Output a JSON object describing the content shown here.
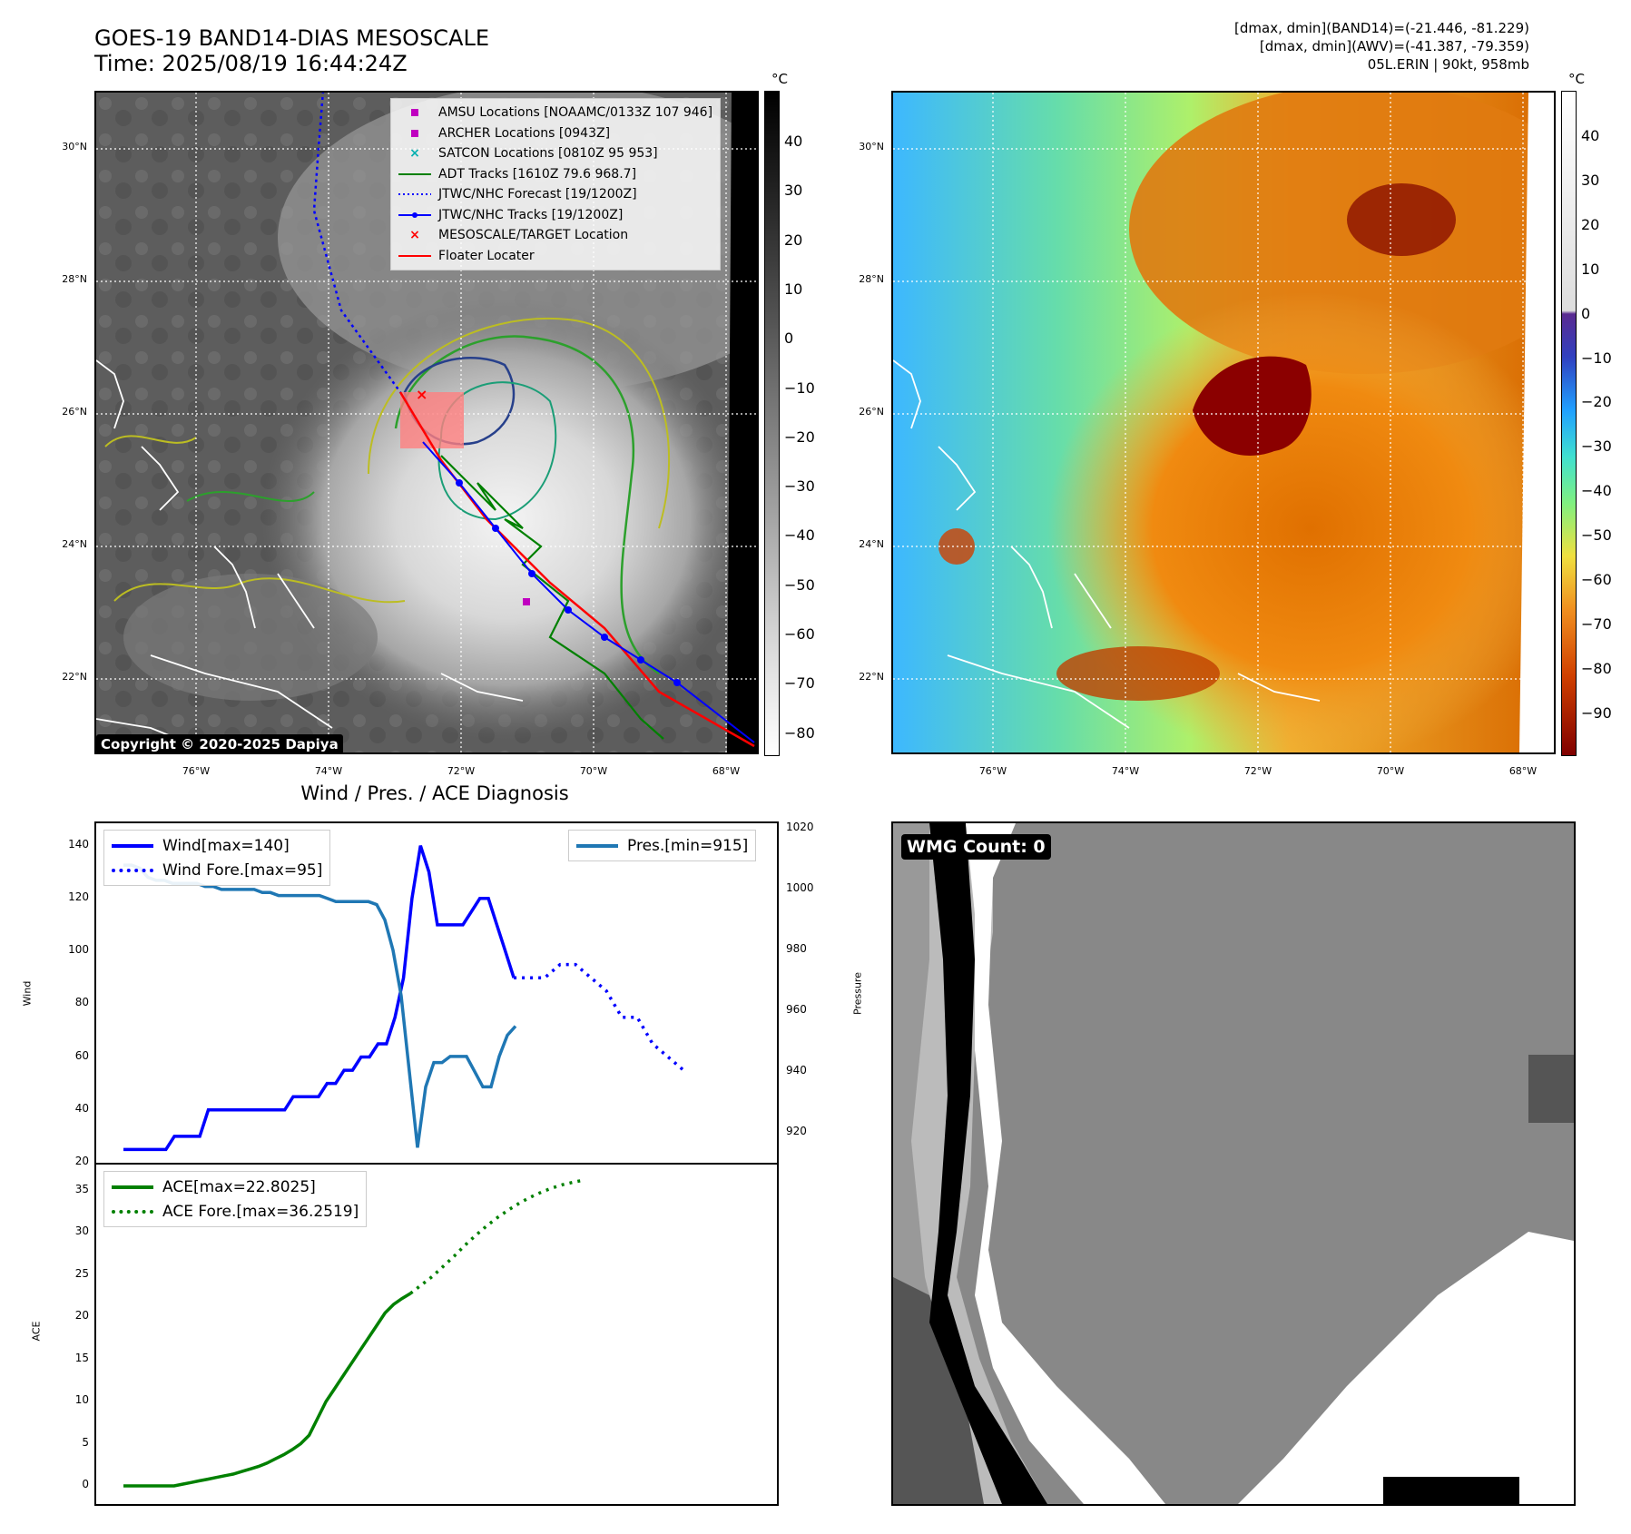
{
  "header": {
    "title_line1": "GOES-19 BAND14-DIAS MESOSCALE",
    "title_line2": "Time: 2025/08/19 16:44:24Z",
    "right_line1": "[dmax, dmin](BAND14)=(-21.446, -81.229)",
    "right_line2": "[dmax, dmin](AWV)=(-41.387, -79.359)",
    "right_line3": "05L.ERIN | 90kt, 958mb"
  },
  "map_common": {
    "lat_labels": [
      "30°N",
      "28°N",
      "26°N",
      "24°N",
      "22°N"
    ],
    "lon_labels": [
      "76°W",
      "74°W",
      "72°W",
      "70°W",
      "68°W"
    ],
    "unit": "°C"
  },
  "map_left": {
    "cbar_ticks": [
      "40",
      "30",
      "20",
      "10",
      "0",
      "−10",
      "−20",
      "−30",
      "−40",
      "−50",
      "−60",
      "−70",
      "−80"
    ],
    "copyright": "Copyright © 2020-2025 Dapiya",
    "legend": [
      {
        "label": "AMSU Locations [NOAAMC/0133Z 107 946]",
        "color": "#c000c0",
        "marker": "square"
      },
      {
        "label": "ARCHER Locations [0943Z]",
        "color": "#c000c0",
        "marker": "square"
      },
      {
        "label": "SATCON Locations [0810Z 95 953]",
        "color": "#00b0b0",
        "marker": "x"
      },
      {
        "label": "ADT Tracks [1610Z 79.6 968.7]",
        "color": "#008000",
        "marker": "line"
      },
      {
        "label": "JTWC/NHC Forecast [19/1200Z]",
        "color": "#0000ff",
        "marker": "dotted"
      },
      {
        "label": "JTWC/NHC Tracks [19/1200Z]",
        "color": "#0000ff",
        "marker": "dotline"
      },
      {
        "label": "MESOSCALE/TARGET Location",
        "color": "#ff0000",
        "marker": "x"
      },
      {
        "label": "Floater Locater",
        "color": "#ff0000",
        "marker": "line"
      }
    ]
  },
  "map_right": {
    "cbar_ticks": [
      "40",
      "30",
      "20",
      "10",
      "0",
      "−10",
      "−20",
      "−30",
      "−40",
      "−50",
      "−60",
      "−70",
      "−80",
      "−90"
    ]
  },
  "diag": {
    "title": "Wind / Pres. / ACE Diagnosis",
    "wind_axis_label": "Wind",
    "pres_axis_label": "Pressure",
    "ace_axis_label": "ACE",
    "wind_ticks": [
      "140",
      "120",
      "100",
      "80",
      "60",
      "40",
      "20"
    ],
    "pres_ticks": [
      "1020",
      "1000",
      "980",
      "960",
      "940",
      "920"
    ],
    "ace_ticks": [
      "35",
      "30",
      "25",
      "20",
      "15",
      "10",
      "5",
      "0"
    ]
  },
  "wmg": {
    "label": "WMG Count: 0"
  },
  "chart_data": [
    {
      "type": "line",
      "series": [
        {
          "name": "Wind[max=140]",
          "color": "#0000ff",
          "style": "solid",
          "values": [
            25,
            25,
            25,
            25,
            25,
            25,
            30,
            30,
            30,
            30,
            40,
            40,
            40,
            40,
            40,
            40,
            40,
            40,
            40,
            40,
            45,
            45,
            45,
            45,
            50,
            50,
            55,
            55,
            60,
            60,
            65,
            65,
            75,
            90,
            120,
            140,
            130,
            110,
            110,
            110,
            110,
            115,
            120,
            120,
            110,
            100,
            90
          ]
        },
        {
          "name": "Wind Fore.[max=95]",
          "color": "#0000ff",
          "style": "dotted",
          "values": [
            90,
            90,
            90,
            95,
            95,
            90,
            85,
            75,
            75,
            65,
            60,
            55
          ]
        },
        {
          "name": "Pres.[min=915]",
          "color": "#1f77b4",
          "style": "solid",
          "axis": "right",
          "values": [
            1008,
            1008,
            1007,
            1004,
            1003,
            1003,
            1002,
            1002,
            1002,
            1002,
            1001,
            1001,
            1000,
            1000,
            1000,
            1000,
            1000,
            999,
            999,
            998,
            998,
            998,
            998,
            998,
            998,
            997,
            996,
            996,
            996,
            996,
            996,
            995,
            990,
            980,
            965,
            940,
            915,
            935,
            943,
            943,
            945,
            945,
            945,
            940,
            935,
            935,
            945,
            952,
            955
          ]
        }
      ],
      "ylim": [
        20,
        145
      ],
      "y2lim": [
        910,
        1020
      ]
    },
    {
      "type": "line",
      "series": [
        {
          "name": "ACE[max=22.8025]",
          "color": "#008000",
          "style": "solid",
          "values": [
            0,
            0,
            0,
            0,
            0,
            0,
            0,
            0.2,
            0.4,
            0.6,
            0.8,
            1.0,
            1.2,
            1.4,
            1.7,
            2.0,
            2.3,
            2.7,
            3.2,
            3.7,
            4.3,
            5.0,
            6.0,
            8.0,
            10.0,
            11.5,
            13.0,
            14.5,
            16.0,
            17.5,
            19.0,
            20.5,
            21.5,
            22.2,
            22.8
          ]
        },
        {
          "name": "ACE Fore.[max=36.2519]",
          "color": "#008000",
          "style": "dotted",
          "values": [
            22.8,
            23.8,
            24.8,
            26,
            27.2,
            28.5,
            29.7,
            30.8,
            31.8,
            32.7,
            33.5,
            34.2,
            34.8,
            35.3,
            35.7,
            36.0,
            36.25
          ]
        }
      ],
      "ylim": [
        -1,
        37
      ]
    }
  ]
}
